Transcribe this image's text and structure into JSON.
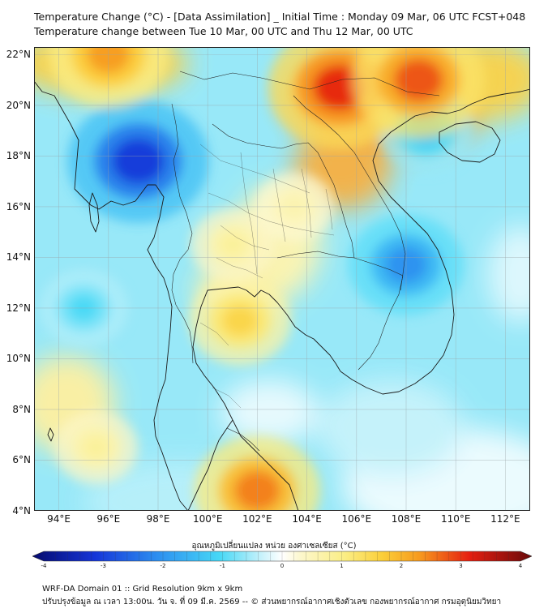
{
  "header": {
    "line1": "Temperature Change (°C) - [Data Assimilation] _ Initial Time : Monday 09 Mar, 06 UTC FCST+048",
    "line2": "Temperature change between Tue 10 Mar, 00 UTC and Thu 12 Mar, 00 UTC"
  },
  "map": {
    "lat_labels": [
      "22°N",
      "20°N",
      "18°N",
      "16°N",
      "14°N",
      "12°N",
      "10°N",
      "8°N",
      "6°N",
      "4°N"
    ],
    "lon_labels": [
      "94°E",
      "96°E",
      "98°E",
      "100°E",
      "102°E",
      "104°E",
      "106°E",
      "108°E",
      "110°E",
      "112°E"
    ],
    "lon_range": [
      93,
      113
    ],
    "lat_range": [
      4,
      22.3
    ],
    "warm_spots": [
      {
        "name": "north-vietnam-high",
        "lon": 105.3,
        "lat": 20.7,
        "value": 3.0
      },
      {
        "name": "gulf-of-tonkin-high",
        "lon": 108.5,
        "lat": 21.0,
        "value": 2.7
      },
      {
        "name": "myanmar-north-warm",
        "lon": 96.0,
        "lat": 22.0,
        "value": 2.2
      },
      {
        "name": "malaysia-warm",
        "lon": 102.0,
        "lat": 4.8,
        "value": 2.4
      },
      {
        "name": "gulf-of-thailand-warm",
        "lon": 101.3,
        "lat": 11.5,
        "value": 1.5
      },
      {
        "name": "central-thailand-warm",
        "lon": 101.0,
        "lat": 14.5,
        "value": 0.8
      },
      {
        "name": "northeast-thailand-warm",
        "lon": 103.5,
        "lat": 16.0,
        "value": 0.6
      },
      {
        "name": "east-andaman-warm",
        "lon": 95.5,
        "lat": 6.5,
        "value": 0.8
      }
    ],
    "cold_spots": [
      {
        "name": "myanmar-cold-core",
        "lon": 97.2,
        "lat": 17.8,
        "value": -3.0
      },
      {
        "name": "central-vietnam-cold",
        "lon": 108.0,
        "lat": 13.7,
        "value": -2.0
      },
      {
        "name": "south-china-sea-cold",
        "lon": 108.8,
        "lat": 19.0,
        "value": -1.3
      },
      {
        "name": "west-andaman-cold",
        "lon": 95.0,
        "lat": 12.0,
        "value": -1.0
      }
    ]
  },
  "colorbar": {
    "title": "อุณหภูมิเปลี่ยนแปลง หน่วย องศาเซลเซียส (°C)",
    "range": [
      -4,
      4
    ],
    "ticks": [
      "-4",
      "-3",
      "-2",
      "-1",
      "0",
      "1",
      "2",
      "3",
      "4"
    ],
    "stops": [
      {
        "value": -4,
        "color": "#050a6e"
      },
      {
        "value": -3,
        "color": "#1535d8"
      },
      {
        "value": -2,
        "color": "#2d8ff0"
      },
      {
        "value": -1,
        "color": "#47d8f6"
      },
      {
        "value": -0.3,
        "color": "#cdf3fb"
      },
      {
        "value": 0,
        "color": "#ffffff"
      },
      {
        "value": 0.3,
        "color": "#fcf7cc"
      },
      {
        "value": 1,
        "color": "#fbee85"
      },
      {
        "value": 1.6,
        "color": "#fbcf3a"
      },
      {
        "value": 2.2,
        "color": "#f79a1e"
      },
      {
        "value": 3,
        "color": "#e51f10"
      },
      {
        "value": 4,
        "color": "#6a0a0a"
      }
    ]
  },
  "footer": {
    "line1": "WRF-DA Domain 01 :: Grid Resolution 9km x 9km",
    "line2": "ปรับปรุงข้อมูล ณ เวลา 13:00น. วัน จ. ที่ 09 มี.ค. 2569 -- © ส่วนพยากรณ์อากาศเชิงตัวเลข กองพยากรณ์อากาศ กรมอุตุนิยมวิทยา"
  }
}
